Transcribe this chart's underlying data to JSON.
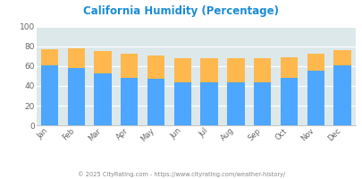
{
  "months": [
    "Jan",
    "Feb",
    "Mar",
    "Apr",
    "May",
    "Jun",
    "Jul",
    "Aug",
    "Sep",
    "Oct",
    "Nov",
    "Dec"
  ],
  "humidity_pm": [
    61,
    58,
    53,
    48,
    47,
    44,
    44,
    44,
    44,
    48,
    55,
    61
  ],
  "humidity_am": [
    77,
    78,
    75,
    73,
    71,
    68,
    68,
    68,
    68,
    69,
    73,
    76
  ],
  "color_pm": "#4da6ff",
  "color_am": "#ffb84d",
  "title": "California Humidity (Percentage)",
  "title_color": "#1a8cd8",
  "bg_color": "#ffffff",
  "plot_bg": "#dde8ea",
  "ylim": [
    0,
    100
  ],
  "yticks": [
    0,
    20,
    40,
    60,
    80,
    100
  ],
  "footnote": "© 2025 CityRating.com - https://www.cityrating.com/weather-history/",
  "footnote_color": "#888888",
  "legend_text_color": "#cc0077"
}
